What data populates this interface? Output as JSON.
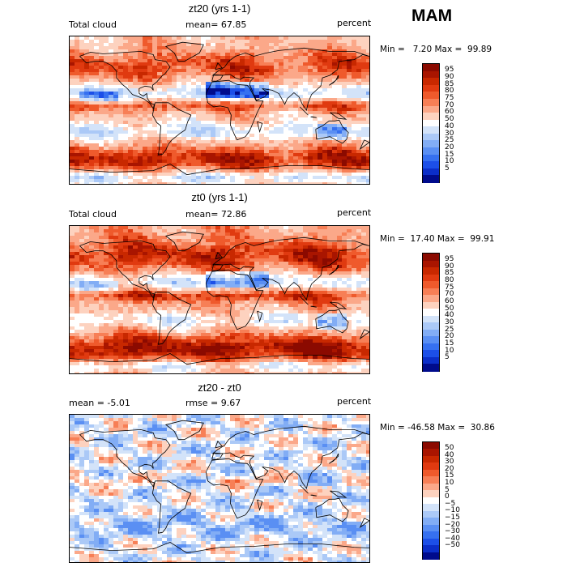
{
  "season": "MAM",
  "panels": [
    {
      "title": "zt20 (yrs 1-1)",
      "left_label": "Total cloud",
      "center_label": "mean=  67.85",
      "right_label": "percent",
      "minmax": "Min =   7.20 Max =  99.89",
      "kind": "cloud",
      "ticks": [
        "95",
        "90",
        "85",
        "80",
        "75",
        "70",
        "60",
        "50",
        "40",
        "30",
        "25",
        "20",
        "15",
        "10",
        "5"
      ],
      "colors": [
        "#8b0a00",
        "#a91500",
        "#c82800",
        "#e03a10",
        "#ef5a2c",
        "#f77f56",
        "#fba889",
        "#fdd2bf",
        "#ffffff",
        "#d3e3f9",
        "#abc9f7",
        "#82adf5",
        "#5a8ff3",
        "#3670f0",
        "#1c4fe8",
        "#0b2ec9",
        "#000b8c"
      ]
    },
    {
      "title": "zt0 (yrs 1-1)",
      "left_label": "Total cloud",
      "center_label": "mean=  72.86",
      "right_label": "percent",
      "minmax": "Min =  17.40 Max =  99.91",
      "kind": "cloud",
      "ticks": [
        "95",
        "90",
        "85",
        "80",
        "75",
        "70",
        "60",
        "50",
        "40",
        "30",
        "25",
        "20",
        "15",
        "10",
        "5"
      ],
      "colors": [
        "#8b0a00",
        "#a91500",
        "#c82800",
        "#e03a10",
        "#ef5a2c",
        "#f77f56",
        "#fba889",
        "#fdd2bf",
        "#ffffff",
        "#d3e3f9",
        "#abc9f7",
        "#82adf5",
        "#5a8ff3",
        "#3670f0",
        "#1c4fe8",
        "#0b2ec9",
        "#000b8c"
      ]
    },
    {
      "title": "zt20 - zt0",
      "left_label": "mean =  -5.01",
      "center_label": "rmse =   9.67",
      "right_label": "percent",
      "minmax": "Min = -46.58 Max =  30.86",
      "kind": "diff",
      "ticks": [
        "50",
        "40",
        "30",
        "20",
        "15",
        "10",
        "5",
        "0",
        "−5",
        "−10",
        "−15",
        "−20",
        "−30",
        "−40",
        "−50"
      ],
      "colors": [
        "#8b0a00",
        "#a91500",
        "#c82800",
        "#e03a10",
        "#ef5a2c",
        "#f77f56",
        "#fba889",
        "#fdd2bf",
        "#ffffff",
        "#d3e3f9",
        "#abc9f7",
        "#82adf5",
        "#5a8ff3",
        "#3670f0",
        "#1c4fe8",
        "#0b2ec9",
        "#000b8c"
      ]
    }
  ]
}
